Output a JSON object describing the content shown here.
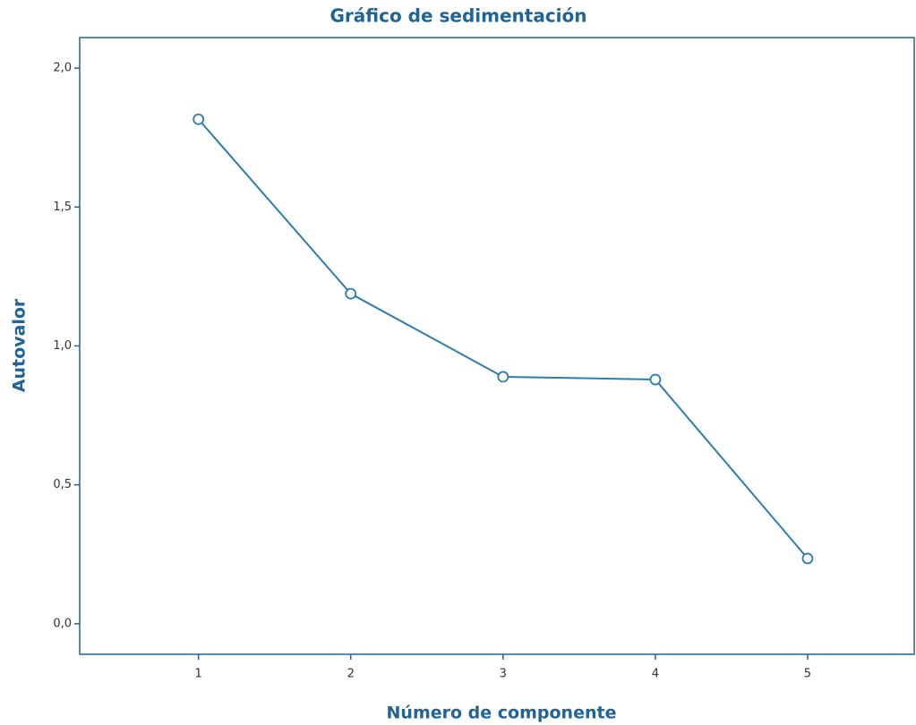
{
  "chart_data": {
    "type": "line",
    "title": "Gráfico de sedimentación",
    "x_label": "Número de componente",
    "y_label": "Autovalor",
    "x": [
      1,
      2,
      3,
      4,
      5
    ],
    "series": [
      {
        "name": "Autovalor",
        "color": "#2e7dab",
        "values": [
          1.816,
          1.188,
          0.889,
          0.879,
          0.235
        ]
      }
    ],
    "xlim": [
      0.22,
      5.7
    ],
    "xticks": [
      1,
      2,
      3,
      4,
      5
    ],
    "ylim": [
      -0.11,
      2.11
    ],
    "yticks": [
      {
        "value": 0,
        "label": "0,0"
      },
      {
        "value": 0.5,
        "label": "0,5"
      },
      {
        "value": 1,
        "label": "1,0"
      },
      {
        "value": 1.5,
        "label": "1,5"
      },
      {
        "value": 2,
        "label": "2,0"
      }
    ],
    "grid": false
  }
}
